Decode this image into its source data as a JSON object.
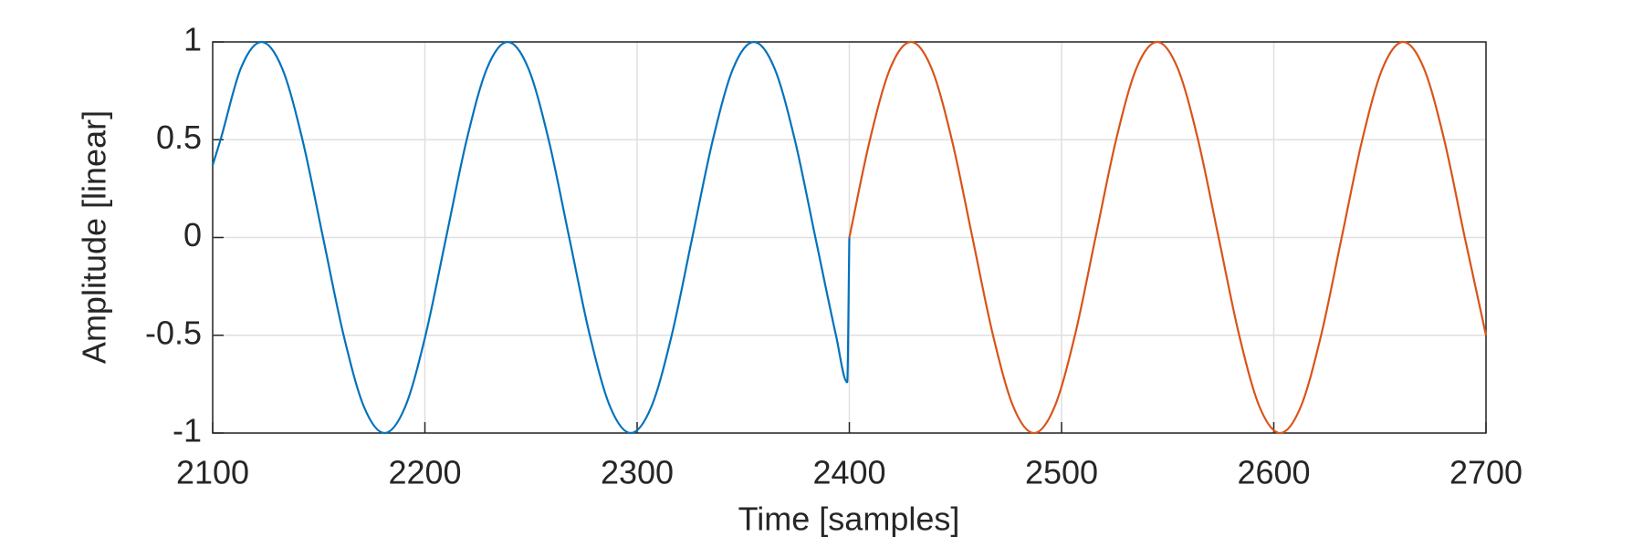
{
  "chart_data": {
    "type": "line",
    "xlabel": "Time [samples]",
    "ylabel": "Amplitude [linear]",
    "xlim": [
      2100,
      2700
    ],
    "ylim": [
      -1,
      1
    ],
    "xticks": [
      2100,
      2200,
      2300,
      2400,
      2500,
      2600,
      2700
    ],
    "yticks": [
      -1,
      -0.5,
      0,
      0.5,
      1
    ],
    "grid": true,
    "series": [
      {
        "color": "#0072bd",
        "x": [
          2100,
          2103.7,
          2113.3,
          2123,
          2132.7,
          2142.3,
          2152,
          2161.7,
          2171.3,
          2181,
          2190.7,
          2200.3,
          2210,
          2219.7,
          2229.3,
          2239,
          2248.7,
          2258.3,
          2268,
          2277.7,
          2287.3,
          2297,
          2306.7,
          2316.3,
          2326,
          2335.7,
          2345.3,
          2355,
          2364.7,
          2374.3,
          2384,
          2393.7,
          2399,
          2400
        ],
        "values": [
          0.37,
          0.5,
          0.866,
          1,
          0.866,
          0.5,
          0,
          -0.5,
          -0.866,
          -1,
          -0.866,
          -0.5,
          0,
          0.5,
          0.866,
          1,
          0.866,
          0.5,
          0,
          -0.5,
          -0.866,
          -1,
          -0.866,
          -0.5,
          0,
          0.5,
          0.866,
          1,
          0.866,
          0.5,
          0,
          -0.5,
          -0.74,
          0
        ]
      },
      {
        "color": "#d95319",
        "x": [
          2400,
          2409.7,
          2419.3,
          2429,
          2438.7,
          2448.3,
          2458,
          2467.7,
          2477.3,
          2487,
          2496.7,
          2506.3,
          2516,
          2525.7,
          2535.3,
          2545,
          2554.7,
          2564.3,
          2574,
          2583.7,
          2593.3,
          2603,
          2612.7,
          2622.3,
          2632,
          2641.7,
          2651.3,
          2661,
          2670.7,
          2680.3,
          2690,
          2700
        ],
        "values": [
          0,
          0.5,
          0.866,
          1,
          0.866,
          0.5,
          0,
          -0.5,
          -0.866,
          -1,
          -0.866,
          -0.5,
          0,
          0.5,
          0.866,
          1,
          0.866,
          0.5,
          0,
          -0.5,
          -0.866,
          -1,
          -0.866,
          -0.5,
          0,
          0.5,
          0.866,
          1,
          0.866,
          0.5,
          0,
          -0.5
        ]
      }
    ]
  }
}
